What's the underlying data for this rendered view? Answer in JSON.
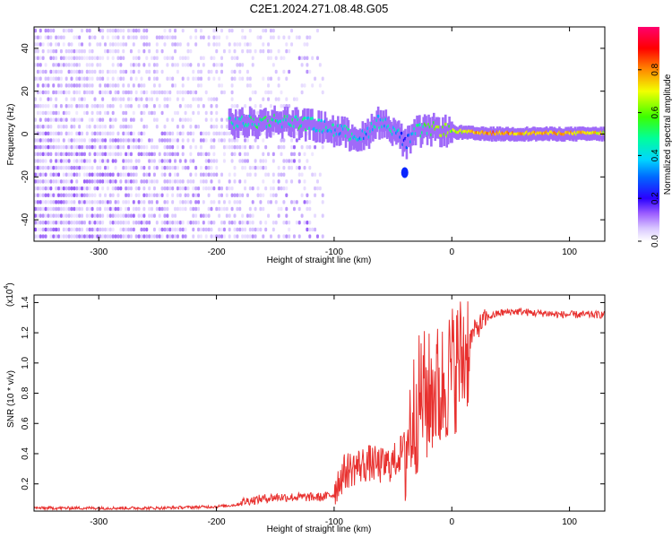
{
  "title": "C2E1.2024.271.08.48.G05",
  "colors": {
    "background": "#ffffff",
    "snr_line": "#e8312f",
    "axis": "#000000",
    "colormap": [
      "#ffffff",
      "#d9c7ff",
      "#7a2cf5",
      "#0b00ff",
      "#00b7ff",
      "#00ffa8",
      "#3cff00",
      "#f2ff00",
      "#ff8a00",
      "#ff0000",
      "#ff006e"
    ]
  },
  "chart_data": [
    {
      "type": "heatmap",
      "xlabel": "Height of straight line (km)",
      "ylabel": "Frequency (Hz)",
      "xlim": [
        -355,
        130
      ],
      "ylim": [
        -50,
        50
      ],
      "xticks": [
        -300,
        -200,
        -100,
        0,
        100
      ],
      "yticks": [
        -40,
        -20,
        0,
        20,
        40
      ],
      "xtick_labels": [
        "-300",
        "-200",
        "-100",
        "0",
        "100"
      ],
      "ytick_labels": [
        "-40",
        "-20",
        "0",
        "20",
        "40"
      ],
      "colorbar": {
        "label": "Normalized spectral amplitude",
        "range": [
          0,
          1
        ],
        "ticks": [
          0.0,
          0.2,
          0.4,
          0.6,
          0.8
        ],
        "tick_labels": [
          "0.0",
          "0.2",
          "0.4",
          "0.6",
          "0.8"
        ]
      },
      "features": {
        "noise_region_x": [
          -355,
          -110
        ],
        "tone_ridge": [
          {
            "x": -190,
            "f": 5,
            "amp": 0.45
          },
          {
            "x": -170,
            "f": 5,
            "amp": 0.5
          },
          {
            "x": -150,
            "f": 6,
            "amp": 0.5
          },
          {
            "x": -130,
            "f": 5,
            "amp": 0.5
          },
          {
            "x": -110,
            "f": 3,
            "amp": 0.45
          },
          {
            "x": -90,
            "f": 0,
            "amp": 0.45
          },
          {
            "x": -75,
            "f": -2,
            "amp": 0.4
          },
          {
            "x": -65,
            "f": 6,
            "amp": 0.45
          },
          {
            "x": -50,
            "f": 2,
            "amp": 0.45
          },
          {
            "x": -40,
            "f": -5,
            "amp": 0.35
          },
          {
            "x": -30,
            "f": 1,
            "amp": 0.5
          },
          {
            "x": -15,
            "f": 2,
            "amp": 0.6
          },
          {
            "x": 0,
            "f": 1,
            "amp": 0.65
          },
          {
            "x": 25,
            "f": 0,
            "amp": 0.8
          },
          {
            "x": 60,
            "f": 0,
            "amp": 0.75
          },
          {
            "x": 100,
            "f": 0,
            "amp": 0.75
          },
          {
            "x": 130,
            "f": 0,
            "amp": 0.7
          }
        ],
        "dropout": {
          "x": -40,
          "f": -18
        }
      }
    },
    {
      "type": "line",
      "xlabel": "Height of straight line (km)",
      "ylabel": "SNR (10 * v/v)",
      "y_multiplier_label": "(x10",
      "y_multiplier_exp": "4",
      "xlim": [
        -355,
        130
      ],
      "ylim": [
        0.02,
        1.45
      ],
      "xticks": [
        -300,
        -200,
        -100,
        0,
        100
      ],
      "yticks": [
        0.2,
        0.4,
        0.6,
        0.8,
        1.0,
        1.2,
        1.4
      ],
      "xtick_labels": [
        "-300",
        "-200",
        "-100",
        "0",
        "100"
      ],
      "ytick_labels": [
        "0.2",
        "0.4",
        "0.6",
        "0.8",
        "1.0",
        "1.2",
        "1.4"
      ],
      "series": [
        {
          "x": [
            -355,
            -300,
            -250,
            -200,
            -185,
            -170,
            -150,
            -130,
            -110,
            -100,
            -95,
            -90,
            -80,
            -70,
            -60,
            -50,
            -45,
            -40,
            -35,
            -30,
            -25,
            -20,
            -15,
            -10,
            -5,
            0,
            5,
            10,
            15,
            20,
            30,
            40,
            50,
            60,
            70,
            80,
            90,
            100,
            110,
            120,
            130
          ],
          "y": [
            0.04,
            0.04,
            0.04,
            0.05,
            0.06,
            0.08,
            0.1,
            0.1,
            0.1,
            0.12,
            0.2,
            0.25,
            0.28,
            0.3,
            0.28,
            0.3,
            0.35,
            0.4,
            0.6,
            0.7,
            0.8,
            0.75,
            0.85,
            0.8,
            0.9,
            0.95,
            1.0,
            1.05,
            1.15,
            1.22,
            1.3,
            1.33,
            1.34,
            1.34,
            1.33,
            1.33,
            1.32,
            1.32,
            1.32,
            1.32,
            1.32
          ]
        }
      ]
    }
  ]
}
